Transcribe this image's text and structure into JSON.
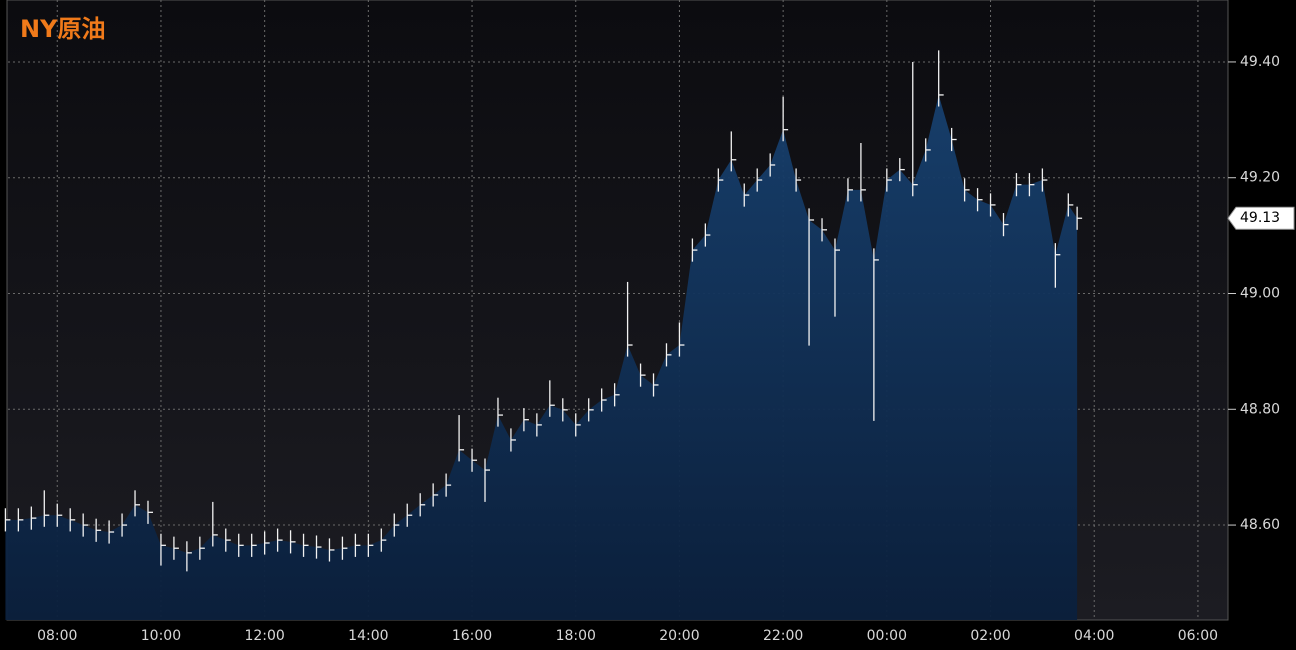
{
  "chart_data": {
    "type": "hlc",
    "title": "NY原油",
    "x": [
      7.0,
      7.25,
      7.5,
      7.75,
      8.0,
      8.25,
      8.5,
      8.75,
      9.0,
      9.25,
      9.5,
      9.75,
      10.0,
      10.25,
      10.5,
      10.75,
      11.0,
      11.25,
      11.5,
      11.75,
      12.0,
      12.25,
      12.5,
      12.75,
      13.0,
      13.25,
      13.5,
      13.75,
      14.0,
      14.25,
      14.5,
      14.75,
      15.0,
      15.25,
      15.5,
      15.75,
      16.0,
      16.25,
      16.5,
      16.75,
      17.0,
      17.25,
      17.5,
      17.75,
      18.0,
      18.25,
      18.5,
      18.75,
      19.0,
      19.25,
      19.5,
      19.75,
      20.0,
      20.25,
      20.5,
      20.75,
      21.0,
      21.25,
      21.5,
      21.75,
      22.0,
      22.25,
      22.5,
      22.75,
      23.0,
      23.25,
      23.5,
      23.75,
      24.0,
      24.25,
      24.5,
      24.75,
      25.0,
      25.25,
      25.5,
      25.75,
      26.0,
      26.25,
      26.5,
      26.75,
      27.0,
      27.25,
      27.5,
      27.67
    ],
    "close": [
      48.609,
      48.609,
      48.612,
      48.617,
      48.617,
      48.609,
      48.6,
      48.591,
      48.588,
      48.6,
      48.635,
      48.622,
      48.565,
      48.56,
      48.552,
      48.56,
      48.583,
      48.574,
      48.565,
      48.565,
      48.569,
      48.574,
      48.571,
      48.565,
      48.562,
      48.557,
      48.56,
      48.565,
      48.565,
      48.574,
      48.6,
      48.617,
      48.635,
      48.652,
      48.669,
      48.73,
      48.712,
      48.695,
      48.79,
      48.747,
      48.782,
      48.773,
      48.807,
      48.799,
      48.773,
      48.799,
      48.816,
      48.825,
      48.911,
      48.859,
      48.842,
      48.894,
      48.911,
      49.075,
      49.101,
      49.196,
      49.231,
      49.17,
      49.196,
      49.222,
      49.283,
      49.196,
      49.127,
      49.11,
      49.075,
      49.179,
      49.179,
      49.058,
      49.196,
      49.214,
      49.188,
      49.248,
      49.343,
      49.266,
      49.179,
      49.162,
      49.153,
      49.119,
      49.188,
      49.188,
      49.196,
      49.067,
      49.153,
      49.13
    ],
    "high": [
      48.629,
      48.629,
      48.632,
      48.66,
      48.637,
      48.629,
      48.62,
      48.611,
      48.608,
      48.62,
      48.66,
      48.642,
      48.585,
      48.58,
      48.572,
      48.58,
      48.64,
      48.594,
      48.585,
      48.585,
      48.589,
      48.594,
      48.591,
      48.585,
      48.582,
      48.577,
      48.58,
      48.585,
      48.585,
      48.594,
      48.62,
      48.637,
      48.655,
      48.672,
      48.689,
      48.79,
      48.732,
      48.715,
      48.82,
      48.767,
      48.802,
      48.793,
      48.85,
      48.819,
      48.793,
      48.819,
      48.836,
      48.845,
      49.02,
      48.879,
      48.862,
      48.914,
      48.95,
      49.095,
      49.121,
      49.216,
      49.28,
      49.19,
      49.216,
      49.242,
      49.34,
      49.216,
      49.147,
      49.13,
      49.095,
      49.199,
      49.26,
      49.078,
      49.216,
      49.234,
      49.4,
      49.268,
      49.42,
      49.286,
      49.199,
      49.182,
      49.173,
      49.139,
      49.208,
      49.208,
      49.216,
      49.087,
      49.173,
      49.15
    ],
    "low": [
      48.589,
      48.589,
      48.592,
      48.597,
      48.597,
      48.589,
      48.58,
      48.571,
      48.568,
      48.58,
      48.615,
      48.602,
      48.53,
      48.54,
      48.52,
      48.54,
      48.563,
      48.554,
      48.545,
      48.545,
      48.549,
      48.554,
      48.551,
      48.545,
      48.542,
      48.537,
      48.54,
      48.545,
      48.545,
      48.554,
      48.58,
      48.597,
      48.615,
      48.632,
      48.649,
      48.71,
      48.692,
      48.64,
      48.77,
      48.727,
      48.762,
      48.753,
      48.787,
      48.779,
      48.753,
      48.779,
      48.796,
      48.805,
      48.891,
      48.839,
      48.822,
      48.874,
      48.891,
      49.055,
      49.081,
      49.176,
      49.211,
      49.15,
      49.176,
      49.202,
      49.263,
      49.176,
      48.91,
      49.09,
      48.96,
      49.159,
      49.159,
      48.78,
      49.176,
      49.194,
      49.168,
      49.228,
      49.323,
      49.246,
      49.159,
      49.142,
      49.133,
      49.099,
      49.168,
      49.168,
      49.176,
      49.01,
      49.133,
      49.11
    ],
    "xlim": [
      7.05,
      30.58
    ],
    "xticks": [
      {
        "value": 8,
        "label": "08:00"
      },
      {
        "value": 10,
        "label": "10:00"
      },
      {
        "value": 12,
        "label": "12:00"
      },
      {
        "value": 14,
        "label": "14:00"
      },
      {
        "value": 16,
        "label": "16:00"
      },
      {
        "value": 18,
        "label": "18:00"
      },
      {
        "value": 20,
        "label": "20:00"
      },
      {
        "value": 22,
        "label": "22:00"
      },
      {
        "value": 24,
        "label": "00:00"
      },
      {
        "value": 26,
        "label": "02:00"
      },
      {
        "value": 28,
        "label": "04:00"
      },
      {
        "value": 30,
        "label": "06:00"
      }
    ],
    "ylim": [
      48.436,
      49.507
    ],
    "yticks": [
      {
        "value": 48.6,
        "label": "48.60"
      },
      {
        "value": 48.8,
        "label": "48.80"
      },
      {
        "value": 49.0,
        "label": "49.00"
      },
      {
        "value": 49.2,
        "label": "49.20"
      },
      {
        "value": 49.4,
        "label": "49.40"
      }
    ],
    "grid": true,
    "bar_color": "#f2f2f2",
    "area_color": "#0d2a4e"
  }
}
